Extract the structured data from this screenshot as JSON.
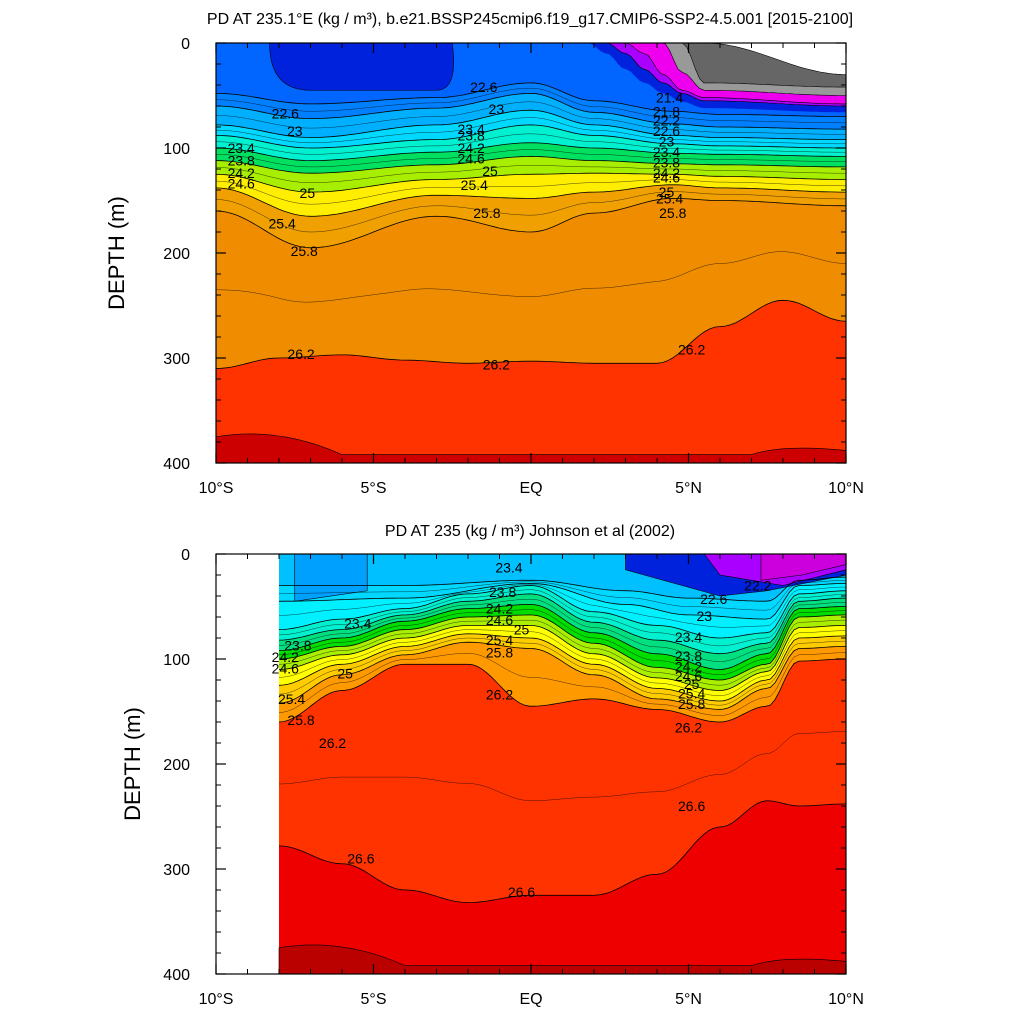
{
  "chart_data": [
    {
      "type": "contour",
      "title": "PD AT 235.1°E (kg / m³), b.e21.BSSP245cmip6.f19_g17.CMIP6-SSP2-4.5.001 [2015-2100]",
      "ylabel": "DEPTH (m)",
      "xlabel": "",
      "xlim": [
        -10,
        10
      ],
      "ylim": [
        400,
        0
      ],
      "x_ticks": [
        {
          "value": -10,
          "label": "10°S"
        },
        {
          "value": -5,
          "label": "5°S"
        },
        {
          "value": 0,
          "label": "EQ"
        },
        {
          "value": 5,
          "label": "5°N"
        },
        {
          "value": 10,
          "label": "10°N"
        }
      ],
      "y_ticks": [
        {
          "value": 0,
          "label": "0"
        },
        {
          "value": 100,
          "label": "100"
        },
        {
          "value": 200,
          "label": "200"
        },
        {
          "value": 300,
          "label": "300"
        },
        {
          "value": 400,
          "label": "400"
        }
      ],
      "data_xrange": [
        -10,
        10
      ],
      "isopycnals": [
        {
          "level": 22.6,
          "x": [
            -10,
            -7,
            -3,
            0,
            2,
            4.5,
            6,
            10
          ],
          "depth": [
            48,
            58,
            52,
            38,
            55,
            65,
            68,
            70
          ]
        },
        {
          "level": 23.0,
          "x": [
            -10,
            -7,
            -3,
            0,
            2,
            4.5,
            6,
            10
          ],
          "depth": [
            60,
            72,
            62,
            48,
            66,
            77,
            80,
            82
          ]
        },
        {
          "level": 23.4,
          "x": [
            -10,
            -7,
            -3,
            0,
            2,
            4.5,
            6,
            10
          ],
          "depth": [
            78,
            90,
            78,
            64,
            78,
            88,
            90,
            92
          ]
        },
        {
          "level": 23.8,
          "x": [
            -10,
            -7,
            -3,
            0,
            2,
            4.5,
            6,
            10
          ],
          "depth": [
            88,
            100,
            92,
            78,
            88,
            96,
            98,
            100
          ]
        },
        {
          "level": 24.2,
          "x": [
            -10,
            -7,
            -3,
            0,
            2,
            4.5,
            6,
            10
          ],
          "depth": [
            100,
            112,
            104,
            95,
            100,
            105,
            106,
            108
          ]
        },
        {
          "level": 24.6,
          "x": [
            -10,
            -7,
            -3,
            0,
            2,
            4.5,
            6,
            10
          ],
          "depth": [
            112,
            124,
            116,
            108,
            112,
            115,
            116,
            118
          ]
        },
        {
          "level": 25.0,
          "x": [
            -10,
            -7,
            -3,
            0,
            2,
            4.5,
            6,
            10
          ],
          "depth": [
            125,
            142,
            130,
            125,
            124,
            125,
            127,
            130
          ]
        },
        {
          "level": 25.4,
          "x": [
            -10,
            -7,
            -3,
            0,
            2,
            4.5,
            6,
            10
          ],
          "depth": [
            138,
            165,
            145,
            148,
            142,
            135,
            138,
            142
          ]
        },
        {
          "level": 25.8,
          "x": [
            -10,
            -7,
            -3,
            0,
            2,
            4.5,
            6,
            10
          ],
          "depth": [
            160,
            195,
            165,
            180,
            162,
            148,
            150,
            155
          ]
        },
        {
          "level": 26.2,
          "x": [
            -10,
            -8,
            -6,
            -4,
            -2,
            0,
            2,
            4,
            6,
            8,
            10
          ],
          "depth": [
            310,
            300,
            297,
            302,
            305,
            303,
            305,
            305,
            270,
            245,
            265
          ]
        }
      ],
      "surface_isopycnals": [
        {
          "level": 21.8,
          "x": [
            1.8,
            3,
            4.5,
            5.5
          ],
          "depth": [
            0,
            30,
            55,
            62
          ]
        },
        {
          "level": 21.4,
          "x": [
            4.2,
            4.6,
            5.0,
            5.5
          ],
          "depth": [
            0,
            20,
            40,
            55
          ]
        }
      ],
      "contour_labels": [
        {
          "text": "22.6",
          "x": -7.8,
          "depth": 67
        },
        {
          "text": "22.6",
          "x": -1.5,
          "depth": 42
        },
        {
          "text": "23",
          "x": -7.5,
          "depth": 84
        },
        {
          "text": "23",
          "x": -1.1,
          "depth": 63
        },
        {
          "text": "23.4",
          "x": -9.2,
          "depth": 100
        },
        {
          "text": "23.4",
          "x": -1.9,
          "depth": 82
        },
        {
          "text": "23.8",
          "x": -9.2,
          "depth": 112
        },
        {
          "text": "23.8",
          "x": -1.9,
          "depth": 88
        },
        {
          "text": "24.2",
          "x": -9.2,
          "depth": 124
        },
        {
          "text": "24.2",
          "x": -1.9,
          "depth": 100
        },
        {
          "text": "24.6",
          "x": -9.2,
          "depth": 134
        },
        {
          "text": "24.6",
          "x": -1.9,
          "depth": 110
        },
        {
          "text": "25",
          "x": -7.1,
          "depth": 143
        },
        {
          "text": "25",
          "x": -1.3,
          "depth": 122
        },
        {
          "text": "25.4",
          "x": -7.9,
          "depth": 172
        },
        {
          "text": "25.4",
          "x": -1.8,
          "depth": 135
        },
        {
          "text": "25.8",
          "x": -7.2,
          "depth": 198
        },
        {
          "text": "25.8",
          "x": -1.4,
          "depth": 162
        },
        {
          "text": "26.2",
          "x": -7.3,
          "depth": 296
        },
        {
          "text": "26.2",
          "x": -1.1,
          "depth": 306
        },
        {
          "text": "26.2",
          "x": 5.1,
          "depth": 292
        },
        {
          "text": "21.4",
          "x": 4.4,
          "depth": 52
        },
        {
          "text": "21.8",
          "x": 4.3,
          "depth": 65
        },
        {
          "text": "22.2",
          "x": 4.3,
          "depth": 74
        },
        {
          "text": "22.6",
          "x": 4.3,
          "depth": 84
        },
        {
          "text": "23",
          "x": 4.3,
          "depth": 94
        },
        {
          "text": "23.4",
          "x": 4.3,
          "depth": 104
        },
        {
          "text": "23.8",
          "x": 4.3,
          "depth": 114
        },
        {
          "text": "24.2",
          "x": 4.3,
          "depth": 124
        },
        {
          "text": "24.6",
          "x": 4.3,
          "depth": 128
        },
        {
          "text": "25",
          "x": 4.3,
          "depth": 142
        },
        {
          "text": "25.4",
          "x": 4.4,
          "depth": 148
        },
        {
          "text": "25.8",
          "x": 4.5,
          "depth": 162
        }
      ]
    },
    {
      "type": "contour",
      "title": "PD AT 235 (kg / m³) Johnson et al (2002)",
      "ylabel": "DEPTH (m)",
      "xlabel": "",
      "xlim": [
        -10,
        10
      ],
      "ylim": [
        400,
        0
      ],
      "x_ticks": [
        {
          "value": -10,
          "label": "10°S"
        },
        {
          "value": -5,
          "label": "5°S"
        },
        {
          "value": 0,
          "label": "EQ"
        },
        {
          "value": 5,
          "label": "5°N"
        },
        {
          "value": 10,
          "label": "10°N"
        }
      ],
      "y_ticks": [
        {
          "value": 0,
          "label": "0"
        },
        {
          "value": 100,
          "label": "100"
        },
        {
          "value": 200,
          "label": "200"
        },
        {
          "value": 300,
          "label": "300"
        },
        {
          "value": 400,
          "label": "400"
        }
      ],
      "data_xrange": [
        -8,
        10
      ],
      "isopycnals": [
        {
          "level": 22.6,
          "x": [
            -8,
            -4,
            0,
            3,
            5,
            7.5,
            8.5,
            10
          ],
          "depth": [
            30,
            30,
            25,
            35,
            42,
            45,
            25,
            22
          ]
        },
        {
          "level": 23.0,
          "x": [
            -8,
            -4,
            0,
            3,
            5,
            7.5,
            8.5,
            10
          ],
          "depth": [
            45,
            42,
            28,
            48,
            58,
            62,
            30,
            28
          ]
        },
        {
          "level": 23.4,
          "x": [
            -8,
            -6,
            -4,
            -2,
            0,
            2,
            4,
            6,
            7.5,
            8.5,
            10
          ],
          "depth": [
            72,
            62,
            52,
            38,
            30,
            55,
            68,
            80,
            75,
            38,
            35
          ]
        },
        {
          "level": 23.8,
          "x": [
            -8,
            -6,
            -4,
            -2,
            0,
            2,
            4,
            6,
            7.5,
            8.5,
            10
          ],
          "depth": [
            82,
            72,
            58,
            45,
            38,
            65,
            82,
            95,
            85,
            45,
            42
          ]
        },
        {
          "level": 24.2,
          "x": [
            -8,
            -6,
            -4,
            -2,
            0,
            2,
            4,
            6,
            7.5,
            8.5,
            10
          ],
          "depth": [
            92,
            80,
            64,
            52,
            48,
            75,
            95,
            110,
            95,
            52,
            50
          ]
        },
        {
          "level": 24.6,
          "x": [
            -8,
            -6,
            -4,
            -2,
            0,
            2,
            4,
            6,
            7.5,
            8.5,
            10
          ],
          "depth": [
            100,
            88,
            72,
            60,
            58,
            85,
            108,
            120,
            105,
            60,
            58
          ]
        },
        {
          "level": 25.0,
          "x": [
            -8,
            -6,
            -4,
            -2,
            0,
            2,
            4,
            6,
            7.5,
            8.5,
            10
          ],
          "depth": [
            110,
            96,
            80,
            68,
            68,
            95,
            118,
            130,
            112,
            70,
            68
          ]
        },
        {
          "level": 25.4,
          "x": [
            -8,
            -6,
            -4,
            -2,
            0,
            2,
            4,
            6,
            7.5,
            8.5,
            10
          ],
          "depth": [
            125,
            105,
            88,
            76,
            80,
            105,
            128,
            140,
            120,
            80,
            78
          ]
        },
        {
          "level": 25.8,
          "x": [
            -8,
            -6,
            -4,
            -2,
            0,
            2,
            4,
            6,
            7.5,
            8.5,
            10
          ],
          "depth": [
            142,
            115,
            96,
            84,
            90,
            115,
            138,
            148,
            128,
            90,
            88
          ]
        },
        {
          "level": 26.2,
          "x": [
            -8,
            -6,
            -4,
            -2,
            0,
            2,
            4,
            6,
            7.5,
            8.5,
            10
          ],
          "depth": [
            160,
            130,
            105,
            105,
            145,
            138,
            148,
            160,
            145,
            102,
            100
          ]
        },
        {
          "level": 26.6,
          "x": [
            -8,
            -6,
            -4,
            -2,
            0,
            2,
            4,
            6,
            7.5,
            8.5,
            10
          ],
          "depth": [
            278,
            295,
            320,
            332,
            325,
            325,
            305,
            260,
            235,
            240,
            238
          ]
        }
      ],
      "contour_labels": [
        {
          "text": "23.4",
          "x": -0.7,
          "depth": 13
        },
        {
          "text": "23.8",
          "x": -0.9,
          "depth": 36
        },
        {
          "text": "24.2",
          "x": -1.0,
          "depth": 52
        },
        {
          "text": "24.6",
          "x": -1.0,
          "depth": 63
        },
        {
          "text": "25",
          "x": -0.3,
          "depth": 72
        },
        {
          "text": "25.4",
          "x": -1.0,
          "depth": 82
        },
        {
          "text": "25.8",
          "x": -1.0,
          "depth": 94
        },
        {
          "text": "26.2",
          "x": -1.0,
          "depth": 134
        },
        {
          "text": "23.4",
          "x": -5.5,
          "depth": 66
        },
        {
          "text": "23.8",
          "x": -7.4,
          "depth": 87
        },
        {
          "text": "24.2",
          "x": -7.8,
          "depth": 98
        },
        {
          "text": "24.6",
          "x": -7.8,
          "depth": 109
        },
        {
          "text": "25",
          "x": -5.9,
          "depth": 114
        },
        {
          "text": "25.4",
          "x": -7.6,
          "depth": 138
        },
        {
          "text": "25.8",
          "x": -7.3,
          "depth": 158
        },
        {
          "text": "26.2",
          "x": -6.3,
          "depth": 180
        },
        {
          "text": "26.6",
          "x": -5.4,
          "depth": 290
        },
        {
          "text": "26.6",
          "x": -0.3,
          "depth": 322
        },
        {
          "text": "26.6",
          "x": 5.1,
          "depth": 240
        },
        {
          "text": "22.6",
          "x": 5.8,
          "depth": 43
        },
        {
          "text": "22.2",
          "x": 7.2,
          "depth": 30
        },
        {
          "text": "23",
          "x": 5.5,
          "depth": 59
        },
        {
          "text": "23.4",
          "x": 5.0,
          "depth": 79
        },
        {
          "text": "23.8",
          "x": 5.0,
          "depth": 97
        },
        {
          "text": "24.2",
          "x": 5.0,
          "depth": 107
        },
        {
          "text": "24.6",
          "x": 5.0,
          "depth": 116
        },
        {
          "text": "25",
          "x": 5.1,
          "depth": 124
        },
        {
          "text": "25.4",
          "x": 5.1,
          "depth": 133
        },
        {
          "text": "25.8",
          "x": 5.1,
          "depth": 143
        },
        {
          "text": "26.2",
          "x": 5.0,
          "depth": 165
        }
      ]
    }
  ],
  "colors": {
    "deep_red": "#cc0000",
    "red": "#ee0000",
    "red_orange": "#ff3300",
    "orange": "#f08c00",
    "yellow": "#ffff00",
    "green": "#00dd00",
    "cyan": "#00e0ff",
    "blue": "#0066ff",
    "dark_blue": "#0022dd",
    "violet": "#aa00ff",
    "magenta": "#ee00ee",
    "gray": "#999999",
    "dark_gray": "#666666"
  }
}
